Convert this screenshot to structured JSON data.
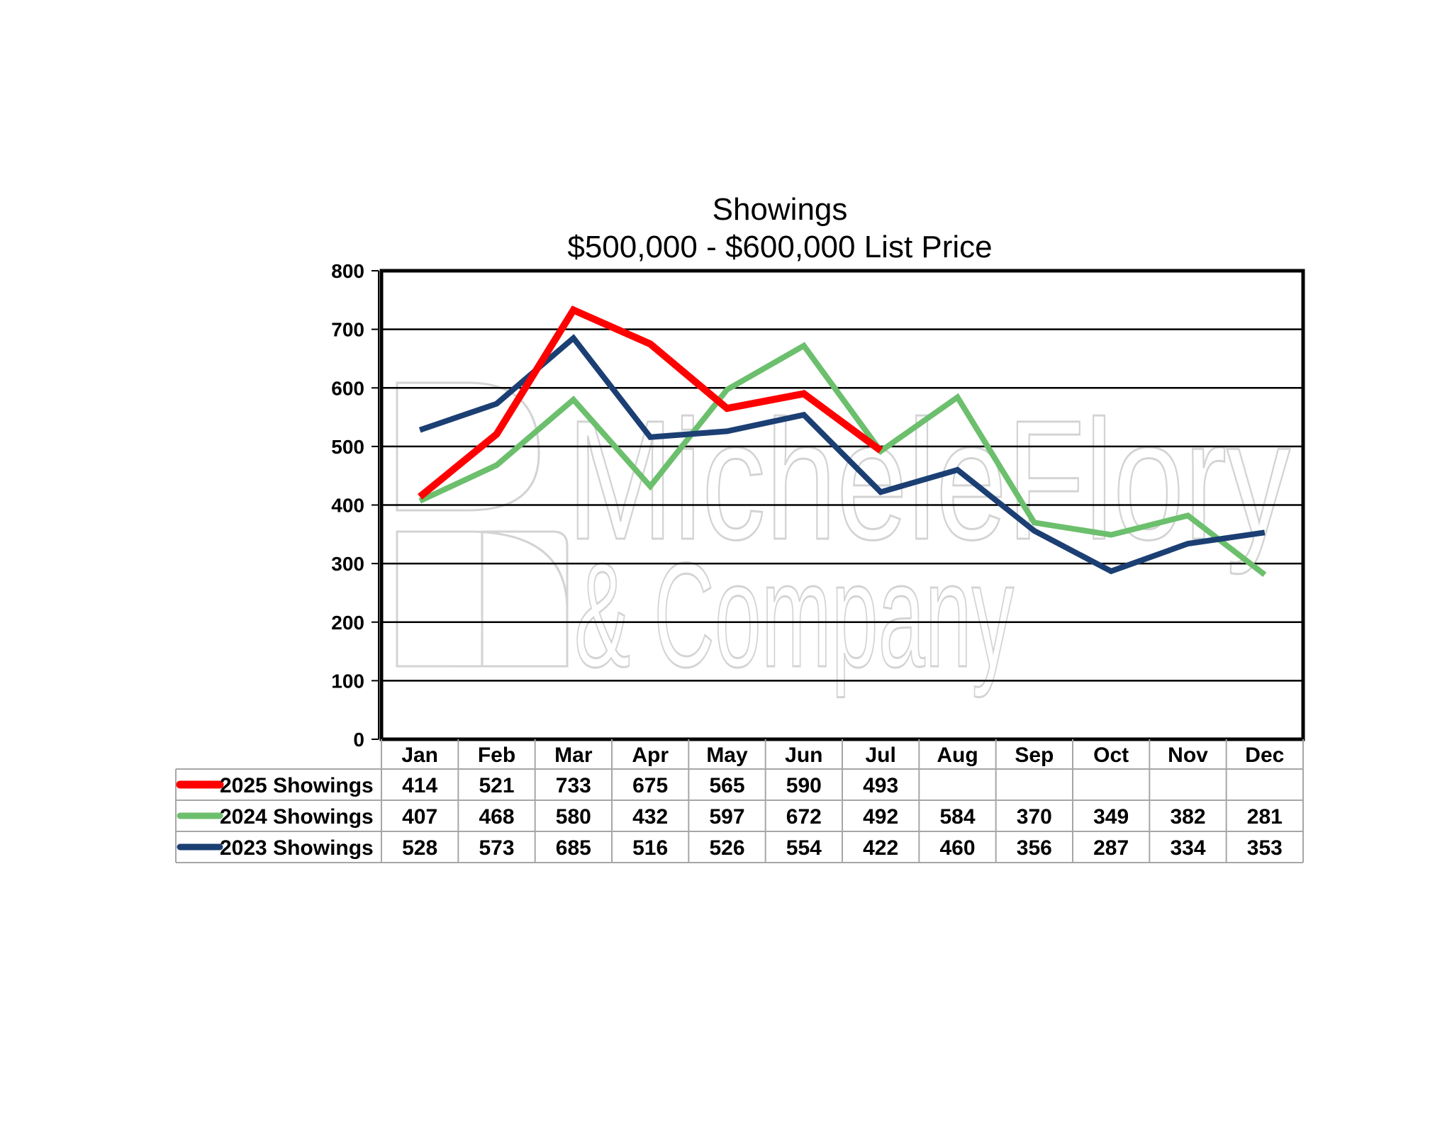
{
  "chart_data": {
    "type": "line",
    "title": "Showings",
    "subtitle": "$500,000 - $600,000 List Price",
    "categories": [
      "Jan",
      "Feb",
      "Mar",
      "Apr",
      "May",
      "Jun",
      "Jul",
      "Aug",
      "Sep",
      "Oct",
      "Nov",
      "Dec"
    ],
    "ylim": [
      0,
      800
    ],
    "yticks": [
      0,
      100,
      200,
      300,
      400,
      500,
      600,
      700,
      800
    ],
    "grid": true,
    "data_table": true,
    "series": [
      {
        "name": "2025 Showings",
        "color": "#ff0000",
        "values": [
          414,
          521,
          733,
          675,
          565,
          590,
          493,
          null,
          null,
          null,
          null,
          null
        ]
      },
      {
        "name": "2024 Showings",
        "color": "#6cbf6c",
        "values": [
          407,
          468,
          580,
          432,
          597,
          672,
          492,
          584,
          370,
          349,
          382,
          281
        ]
      },
      {
        "name": "2023 Showings",
        "color": "#1b3f73",
        "values": [
          528,
          573,
          685,
          516,
          526,
          554,
          422,
          460,
          356,
          287,
          334,
          353
        ]
      }
    ]
  },
  "watermark": {
    "line1": "MicheleFlory",
    "line2": "& Company",
    "color": "#cfcfcf"
  }
}
